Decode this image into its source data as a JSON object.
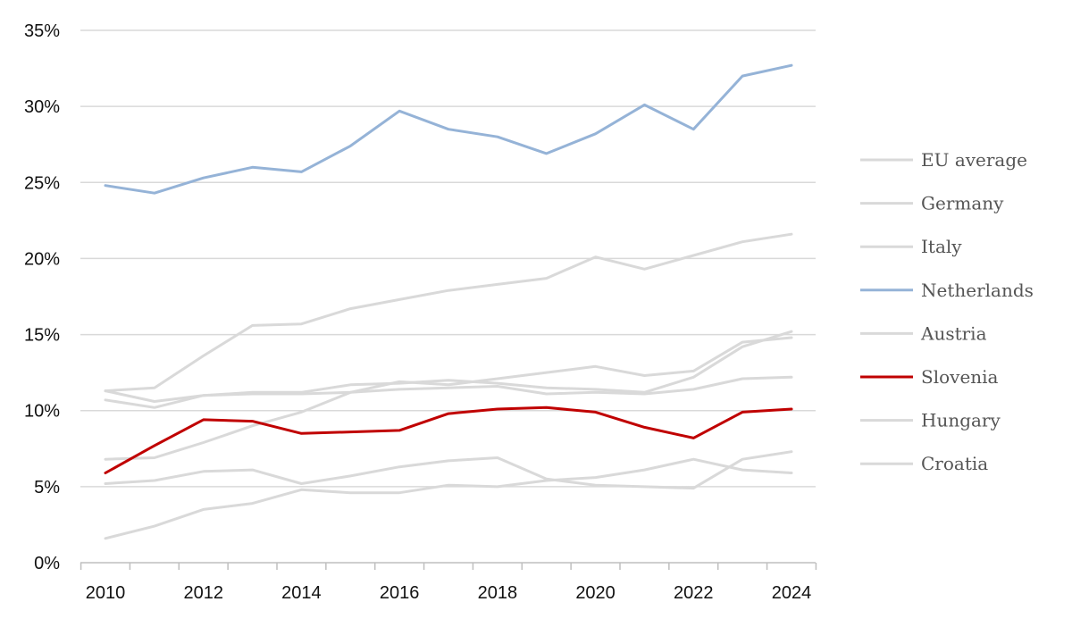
{
  "chart_data": {
    "type": "line",
    "title": "",
    "xlabel": "",
    "ylabel": "",
    "x": [
      2010,
      2011,
      2012,
      2013,
      2014,
      2015,
      2016,
      2017,
      2018,
      2019,
      2020,
      2021,
      2022,
      2023,
      2024
    ],
    "x_tick_labels": [
      "2010",
      "2012",
      "2014",
      "2016",
      "2018",
      "2020",
      "2022",
      "2024"
    ],
    "y_ticks": [
      0,
      5,
      10,
      15,
      20,
      25,
      30,
      35
    ],
    "y_tick_labels": [
      "0%",
      "5%",
      "10%",
      "15%",
      "20%",
      "25%",
      "30%",
      "35%"
    ],
    "ylim": [
      0,
      35
    ],
    "grid": "horizontal",
    "legend_position": "right",
    "series": [
      {
        "name": "EU average",
        "color": "#d9d9d9",
        "highlight": false,
        "values": [
          10.7,
          10.2,
          11.0,
          11.1,
          11.1,
          11.2,
          11.4,
          11.5,
          11.6,
          11.1,
          11.2,
          11.1,
          11.4,
          12.1,
          12.2
        ]
      },
      {
        "name": "Germany",
        "color": "#d9d9d9",
        "highlight": false,
        "values": [
          11.3,
          10.6,
          11.0,
          11.2,
          11.2,
          11.7,
          11.8,
          12.0,
          11.8,
          11.5,
          11.4,
          11.2,
          12.2,
          14.2,
          15.2
        ]
      },
      {
        "name": "Italy",
        "color": "#d9d9d9",
        "highlight": false,
        "values": [
          11.3,
          11.5,
          13.6,
          15.6,
          15.7,
          16.7,
          17.3,
          17.9,
          18.3,
          18.7,
          20.1,
          19.3,
          20.2,
          21.1,
          21.6
        ]
      },
      {
        "name": "Netherlands",
        "color": "#95b3d7",
        "highlight": true,
        "values": [
          24.8,
          24.3,
          25.3,
          26.0,
          25.7,
          27.4,
          29.7,
          28.5,
          28.0,
          26.9,
          28.2,
          30.1,
          28.5,
          32.0,
          32.7
        ]
      },
      {
        "name": "Austria",
        "color": "#d9d9d9",
        "highlight": false,
        "values": [
          6.8,
          6.9,
          7.9,
          9.0,
          9.9,
          11.2,
          11.9,
          11.7,
          12.1,
          12.5,
          12.9,
          12.3,
          12.6,
          14.5,
          14.8
        ]
      },
      {
        "name": "Slovenia",
        "color": "#c00000",
        "highlight": true,
        "values": [
          5.9,
          7.7,
          9.4,
          9.3,
          8.5,
          8.6,
          8.7,
          9.8,
          10.1,
          10.2,
          9.9,
          8.9,
          8.2,
          9.9,
          10.1
        ]
      },
      {
        "name": "Hungary",
        "color": "#d9d9d9",
        "highlight": false,
        "values": [
          1.6,
          2.4,
          3.5,
          3.9,
          4.8,
          4.6,
          4.6,
          5.1,
          5.0,
          5.4,
          5.6,
          6.1,
          6.8,
          6.1,
          5.9
        ]
      },
      {
        "name": "Croatia",
        "color": "#d9d9d9",
        "highlight": false,
        "values": [
          5.2,
          5.4,
          6.0,
          6.1,
          5.2,
          5.7,
          6.3,
          6.7,
          6.9,
          5.5,
          5.1,
          5.0,
          4.9,
          6.8,
          7.3
        ]
      }
    ]
  }
}
